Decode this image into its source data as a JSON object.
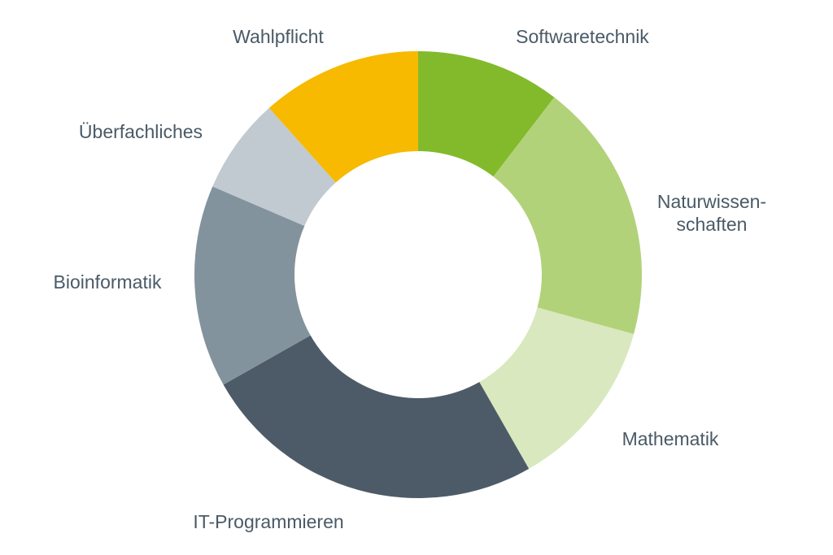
{
  "chart_data": {
    "type": "pie",
    "donut": true,
    "legend": "none",
    "series": [
      {
        "label": "Softwaretechnik",
        "value": 9.6,
        "color": "#82BA2C"
      },
      {
        "label": "Naturwissen-\nschaften",
        "value": 17.4,
        "color": "#B2D27A"
      },
      {
        "label": "Mathematik",
        "value": 11.5,
        "color": "#D9E8BE"
      },
      {
        "label": "IT-Programmieren",
        "value": 23.1,
        "color": "#4C5B67"
      },
      {
        "label": "Bioinformatik",
        "value": 13.5,
        "color": "#83939D"
      },
      {
        "label": "Überfachliches",
        "value": 6.4,
        "color": "#C1C9D1"
      },
      {
        "label": "Wahlpflicht",
        "value": 10.7,
        "color": "#F7BA00"
      }
    ]
  }
}
